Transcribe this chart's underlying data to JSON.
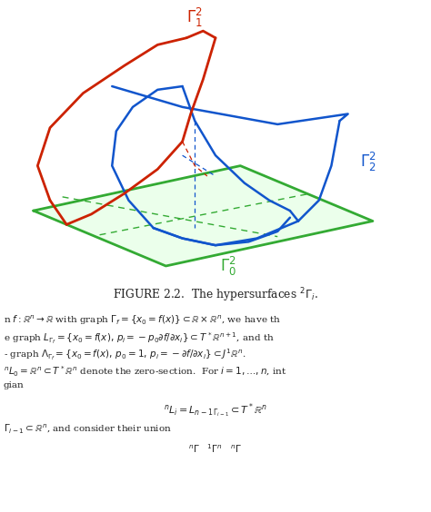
{
  "background_color": "#ffffff",
  "red": "#cc2200",
  "blue": "#1155cc",
  "green": "#33aa33",
  "lw": 1.8,
  "caption": "Figure 2.2.  The hypersurfaces ${}^2\\Gamma_i$.",
  "line1": "n $f : \\mathbb{R}^n \\to \\mathbb{R}$ with graph $\\Gamma_f = \\{x_0 = f(x)\\} \\subset \\mathbb{R}\\times\\mathbb{R}^n$, we have th",
  "line2": "e graph $L_{\\Gamma_f} = \\{x_0 = f(x),\\, p_i = -p_0\\partial f/\\partial x_i\\} \\subset T^*\\mathbb{R}^{n+1}$, and th",
  "line3": "- graph $\\Lambda_{\\Gamma_f} = \\{x_0 = f(x),\\, p_0 = 1,\\, p_i = -\\partial f/\\partial x_i\\} \\subset J^1\\mathbb{R}^n$.",
  "line4": "${}^nL_0 = \\mathbb{R}^n \\subset T^*\\mathbb{R}^n$ denote the zero-section.  For $i = 1,\\ldots,n$, int",
  "line5": "gian",
  "equation": "${}^nL_i = L_{n-1\\,\\Gamma_{i-1}} \\subset T^*\\mathbb{R}^n$",
  "line6": "$\\Gamma_{i-1} \\subset \\mathbb{R}^n$, and consider their union",
  "line7": "${}^n\\Gamma \\quad {}^1\\Gamma^n \\quad {}^n\\Gamma$"
}
